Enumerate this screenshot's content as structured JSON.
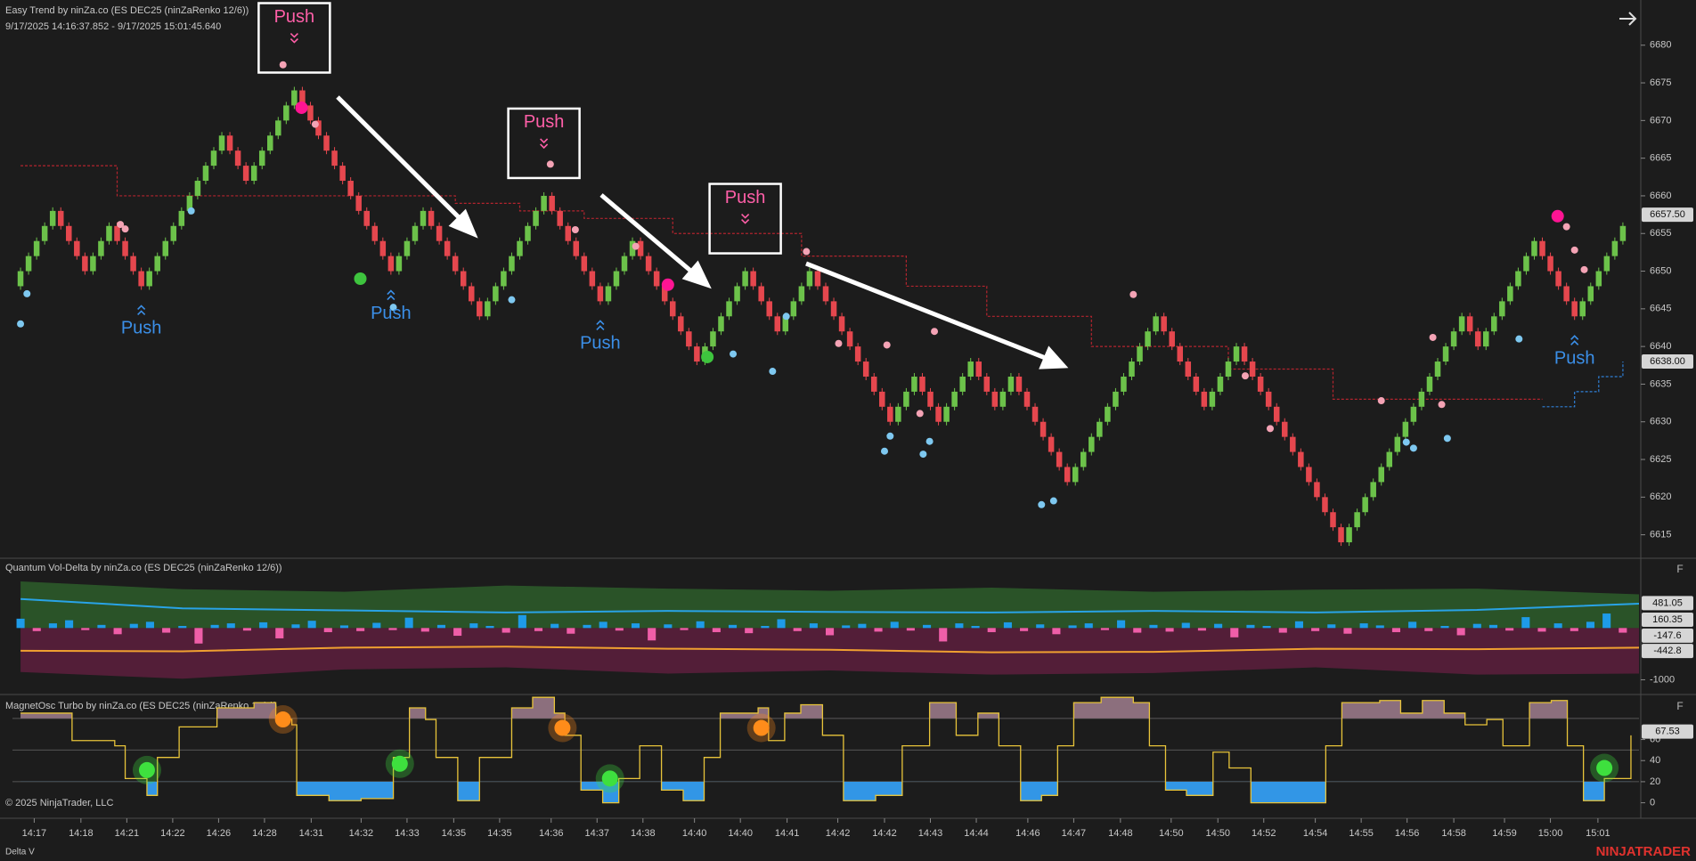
{
  "chart_data": [
    {
      "type": "renko",
      "title": "Easy Trend by ninZa.co (ES DEC25 (ninZaRenko 12/6))",
      "subtitle": "9/17/2025 14:16:37.852 - 9/17/2025 15:01:45.640",
      "open": 6648,
      "values": [
        6650,
        6652,
        6654,
        6656,
        6658,
        6656,
        6654,
        6652,
        6650,
        6652,
        6654,
        6656,
        6654,
        6652,
        6650,
        6648,
        6650,
        6652,
        6654,
        6656,
        6658,
        6660,
        6662,
        6664,
        6666,
        6668,
        6666,
        6664,
        6662,
        6664,
        6666,
        6668,
        6670,
        6672,
        6674,
        6672,
        6670,
        6668,
        6666,
        6664,
        6662,
        6660,
        6658,
        6656,
        6654,
        6652,
        6650,
        6652,
        6654,
        6656,
        6658,
        6656,
        6654,
        6652,
        6650,
        6648,
        6646,
        6644,
        6646,
        6648,
        6650,
        6652,
        6654,
        6656,
        6658,
        6660,
        6658,
        6656,
        6654,
        6652,
        6650,
        6648,
        6646,
        6648,
        6650,
        6652,
        6654,
        6652,
        6650,
        6648,
        6646,
        6644,
        6642,
        6640,
        6638,
        6640,
        6642,
        6644,
        6646,
        6648,
        6650,
        6648,
        6646,
        6644,
        6642,
        6644,
        6646,
        6648,
        6650,
        6648,
        6646,
        6644,
        6642,
        6640,
        6638,
        6636,
        6634,
        6632,
        6630,
        6632,
        6634,
        6636,
        6634,
        6632,
        6630,
        6632,
        6634,
        6636,
        6638,
        6636,
        6634,
        6632,
        6634,
        6636,
        6634,
        6632,
        6630,
        6628,
        6626,
        6624,
        6622,
        6624,
        6626,
        6628,
        6630,
        6632,
        6634,
        6636,
        6638,
        6640,
        6642,
        6644,
        6642,
        6640,
        6638,
        6636,
        6634,
        6632,
        6634,
        6636,
        6638,
        6640,
        6638,
        6636,
        6634,
        6632,
        6630,
        6628,
        6626,
        6624,
        6622,
        6620,
        6618,
        6616,
        6614,
        6616,
        6618,
        6620,
        6622,
        6624,
        6626,
        6628,
        6630,
        6632,
        6634,
        6636,
        6638,
        6640,
        6642,
        6644,
        6642,
        6640,
        6642,
        6644,
        6646,
        6648,
        6650,
        6652,
        6654,
        6652,
        6650,
        6648,
        6646,
        6644,
        6646,
        6648,
        6650,
        6652,
        6654,
        6656
      ],
      "up_color": "#6cc24a",
      "down_color": "#e5474e",
      "xlim": [
        -1,
        201
      ],
      "xticks": [
        {
          "value": 1.7,
          "label": "14:17"
        },
        {
          "value": 7.5,
          "label": "14:18"
        },
        {
          "value": 13.2,
          "label": "14:21"
        },
        {
          "value": 18.9,
          "label": "14:22"
        },
        {
          "value": 24.6,
          "label": "14:26"
        },
        {
          "value": 30.3,
          "label": "14:28"
        },
        {
          "value": 36.1,
          "label": "14:31"
        },
        {
          "value": 42.3,
          "label": "14:32"
        },
        {
          "value": 48,
          "label": "14:33"
        },
        {
          "value": 53.8,
          "label": "14:35"
        },
        {
          "value": 59.5,
          "label": "14:35"
        },
        {
          "value": 65.9,
          "label": "14:36"
        },
        {
          "value": 71.6,
          "label": "14:37"
        },
        {
          "value": 77.3,
          "label": "14:38"
        },
        {
          "value": 83.7,
          "label": "14:40"
        },
        {
          "value": 89.4,
          "label": "14:40"
        },
        {
          "value": 95.2,
          "label": "14:41"
        },
        {
          "value": 101.5,
          "label": "14:42"
        },
        {
          "value": 107.3,
          "label": "14:42"
        },
        {
          "value": 113,
          "label": "14:43"
        },
        {
          "value": 118.7,
          "label": "14:44"
        },
        {
          "value": 125.1,
          "label": "14:46"
        },
        {
          "value": 130.8,
          "label": "14:47"
        },
        {
          "value": 136.6,
          "label": "14:48"
        },
        {
          "value": 142.9,
          "label": "14:50"
        },
        {
          "value": 148.7,
          "label": "14:50"
        },
        {
          "value": 154.4,
          "label": "14:52"
        },
        {
          "value": 160.8,
          "label": "14:54"
        },
        {
          "value": 166.5,
          "label": "14:55"
        },
        {
          "value": 172.2,
          "label": "14:56"
        },
        {
          "value": 178,
          "label": "14:58"
        },
        {
          "value": 184.3,
          "label": "14:59"
        },
        {
          "value": 190,
          "label": "15:00"
        },
        {
          "value": 195.9,
          "label": "15:01"
        }
      ],
      "ylim": [
        6612,
        6686
      ],
      "yticks": [
        6615,
        6620,
        6625,
        6630,
        6635,
        6640,
        6645,
        6650,
        6655,
        6660,
        6665,
        6670,
        6675,
        6680
      ],
      "price_flags": [
        {
          "value": 6657.5,
          "label": "6657.50"
        },
        {
          "value": 6638,
          "label": "6638.00"
        }
      ],
      "stop_lines": [
        {
          "color": "#b3242e",
          "x": [
            0,
            12,
            54,
            62,
            70,
            81,
            97,
            110,
            120,
            133,
            150,
            163,
            189
          ],
          "values": [
            6664,
            6660,
            6659,
            6658,
            6657,
            6655,
            6652,
            6648,
            6644,
            6640,
            6637,
            6633,
            6633
          ]
        },
        {
          "color": "#2f7fd6",
          "x": [
            189,
            193,
            196,
            199
          ],
          "values": [
            6632,
            6634,
            6636,
            6638
          ]
        }
      ],
      "signals": [
        {
          "x": 0.8,
          "value": 6647,
          "color": "#7ec8f0"
        },
        {
          "x": 0,
          "value": 6643,
          "color": "#7ec8f0"
        },
        {
          "x": 12.4,
          "value": 6656.2,
          "color": "#f4a3b5"
        },
        {
          "x": 13,
          "value": 6655.6,
          "color": "#f4a3b5"
        },
        {
          "x": 21.2,
          "value": 6658,
          "color": "#7ec8f0"
        },
        {
          "x": 32.6,
          "value": 6677.4,
          "color": "#f4a3b5"
        },
        {
          "x": 34.9,
          "value": 6671.7,
          "color": "#ff1493",
          "large": true
        },
        {
          "x": 36.6,
          "value": 6669.5,
          "color": "#f4a3b5"
        },
        {
          "x": 42.2,
          "value": 6649,
          "color": "#3ec43e",
          "large": true
        },
        {
          "x": 46.3,
          "value": 6645.2,
          "color": "#7ec8f0"
        },
        {
          "x": 61,
          "value": 6646.2,
          "color": "#7ec8f0"
        },
        {
          "x": 65.8,
          "value": 6664.2,
          "color": "#f4a3b5"
        },
        {
          "x": 68.9,
          "value": 6655.5,
          "color": "#f4a3b5"
        },
        {
          "x": 76.4,
          "value": 6653.3,
          "color": "#f4a3b5"
        },
        {
          "x": 80.4,
          "value": 6648.2,
          "color": "#ff1493",
          "large": true
        },
        {
          "x": 85.3,
          "value": 6638.6,
          "color": "#3ec43e",
          "large": true
        },
        {
          "x": 88.5,
          "value": 6639,
          "color": "#7ec8f0"
        },
        {
          "x": 93.4,
          "value": 6636.7,
          "color": "#7ec8f0"
        },
        {
          "x": 95.1,
          "value": 6644,
          "color": "#7ec8f0"
        },
        {
          "x": 97.6,
          "value": 6652.6,
          "color": "#f4a3b5"
        },
        {
          "x": 101.6,
          "value": 6640.4,
          "color": "#f4a3b5"
        },
        {
          "x": 107.6,
          "value": 6640.2,
          "color": "#f4a3b5"
        },
        {
          "x": 111.7,
          "value": 6631.1,
          "color": "#f4a3b5"
        },
        {
          "x": 113.5,
          "value": 6642,
          "color": "#f4a3b5"
        },
        {
          "x": 108,
          "value": 6628.1,
          "color": "#7ec8f0"
        },
        {
          "x": 107.3,
          "value": 6626.1,
          "color": "#7ec8f0"
        },
        {
          "x": 112.9,
          "value": 6627.4,
          "color": "#7ec8f0"
        },
        {
          "x": 112.1,
          "value": 6625.7,
          "color": "#7ec8f0"
        },
        {
          "x": 126.8,
          "value": 6619,
          "color": "#7ec8f0"
        },
        {
          "x": 128.3,
          "value": 6619.5,
          "color": "#7ec8f0"
        },
        {
          "x": 138.2,
          "value": 6646.9,
          "color": "#f4a3b5"
        },
        {
          "x": 152.1,
          "value": 6636.1,
          "color": "#f4a3b5"
        },
        {
          "x": 155.2,
          "value": 6629.1,
          "color": "#f4a3b5"
        },
        {
          "x": 169,
          "value": 6632.8,
          "color": "#f4a3b5"
        },
        {
          "x": 175.4,
          "value": 6641.2,
          "color": "#f4a3b5"
        },
        {
          "x": 176.5,
          "value": 6632.3,
          "color": "#f4a3b5"
        },
        {
          "x": 172.1,
          "value": 6627.3,
          "color": "#7ec8f0"
        },
        {
          "x": 173,
          "value": 6626.5,
          "color": "#7ec8f0"
        },
        {
          "x": 177.2,
          "value": 6627.8,
          "color": "#7ec8f0"
        },
        {
          "x": 186.1,
          "value": 6641,
          "color": "#7ec8f0"
        },
        {
          "x": 190.9,
          "value": 6657.3,
          "color": "#ff1493",
          "large": true
        },
        {
          "x": 192,
          "value": 6655.9,
          "color": "#f4a3b5"
        },
        {
          "x": 193,
          "value": 6652.8,
          "color": "#f4a3b5"
        },
        {
          "x": 194.2,
          "value": 6650.2,
          "color": "#f4a3b5"
        }
      ],
      "annotations": [
        {
          "text": "Push",
          "bar": 34,
          "direction": "down",
          "boxed": true,
          "color": "#ff5fa8"
        },
        {
          "text": "Push",
          "bar": 65,
          "direction": "down",
          "boxed": true,
          "color": "#ff5fa8"
        },
        {
          "text": "Push",
          "bar": 90,
          "direction": "down",
          "boxed": true,
          "color": "#ff5fa8"
        },
        {
          "text": "Push",
          "bar": 15,
          "direction": "up",
          "boxed": false,
          "color": "#3b8fe8"
        },
        {
          "text": "Push",
          "bar": 46,
          "direction": "up",
          "boxed": false,
          "color": "#3b8fe8"
        },
        {
          "text": "Push",
          "bar": 72,
          "direction": "up",
          "boxed": false,
          "color": "#3b8fe8"
        },
        {
          "text": "Push",
          "bar": 193,
          "direction": "up",
          "boxed": false,
          "color": "#3b8fe8"
        }
      ]
    },
    {
      "type": "vol-delta",
      "title": "Quantum Vol-Delta by ninZa.co (ES DEC25 (ninZaRenko 12/6))",
      "xlim": [
        -0.5,
        100
      ],
      "ylim": [
        -1250,
        1330
      ],
      "yticks": [
        -1000
      ],
      "price_flags": [
        481.05,
        160.35,
        -147.6,
        -442.8
      ],
      "values": [
        180,
        -60,
        90,
        150,
        -40,
        60,
        -120,
        80,
        120,
        -90,
        40,
        -300,
        60,
        90,
        -50,
        110,
        -200,
        70,
        140,
        -80,
        50,
        -60,
        100,
        -40,
        200,
        -70,
        60,
        -150,
        90,
        40,
        -90,
        250,
        -60,
        80,
        -110,
        60,
        120,
        -50,
        90,
        -240,
        70,
        -40,
        130,
        -80,
        60,
        -100,
        40,
        170,
        -60,
        90,
        -140,
        50,
        80,
        -70,
        120,
        -50,
        60,
        -260,
        90,
        40,
        -80,
        110,
        -60,
        70,
        -120,
        50,
        90,
        -40,
        150,
        -90,
        60,
        -70,
        100,
        -50,
        80,
        -180,
        60,
        40,
        -90,
        130,
        -60,
        70,
        -110,
        90,
        50,
        -80,
        120,
        -60,
        40,
        -140,
        80,
        60,
        -50,
        210,
        -70,
        90,
        -60,
        120,
        280,
        -90
      ],
      "up_color": "#1e9be8",
      "down_color": "#ef5ea8",
      "bands": {
        "x": [
          0,
          10,
          20,
          30,
          40,
          50,
          60,
          70,
          80,
          90,
          100
        ],
        "upper": [
          900,
          750,
          700,
          820,
          760,
          720,
          780,
          700,
          740,
          760,
          650
        ],
        "lower": [
          -850,
          -980,
          -800,
          -760,
          -880,
          -820,
          -900,
          -870,
          -760,
          -900,
          -880
        ],
        "upper_color": "#2c5a2a",
        "lower_color": "#5a1f3c"
      },
      "lines": [
        {
          "color": "#29a3e6",
          "x": [
            0,
            10,
            20,
            30,
            40,
            50,
            60,
            70,
            80,
            90,
            100
          ],
          "values": [
            560,
            380,
            340,
            300,
            330,
            310,
            300,
            330,
            300,
            350,
            470
          ]
        },
        {
          "color": "#f0a030",
          "x": [
            0,
            10,
            20,
            30,
            40,
            50,
            60,
            70,
            80,
            90,
            100
          ],
          "values": [
            -440,
            -450,
            -380,
            -360,
            -400,
            -420,
            -470,
            -460,
            -400,
            -410,
            -380
          ]
        }
      ]
    },
    {
      "type": "oscillator",
      "title": "MagnetOsc Turbo by ninZa.co (ES DEC25 (ninZaRenko 12/6))",
      "xlim": [
        -1,
        201
      ],
      "ylim": [
        -13,
        101
      ],
      "yticks": [
        0,
        20,
        40,
        60
      ],
      "levels": [
        20,
        50,
        80
      ],
      "price_flags": [
        67.53
      ],
      "x": [
        0,
        6.4,
        11.7,
        13,
        15.7,
        17,
        19.7,
        24.4,
        29,
        31.7,
        33.7,
        34.3,
        38.3,
        42.3,
        46.3,
        48.3,
        50.3,
        51.6,
        54.3,
        57,
        61,
        63.6,
        66.3,
        67.6,
        69.6,
        72.3,
        74.3,
        76.9,
        79.6,
        82.3,
        84.9,
        86.9,
        91.6,
        92.9,
        94.9,
        96.9,
        99.6,
        102.2,
        106.2,
        109.5,
        112.9,
        116.2,
        118.9,
        121.5,
        124.2,
        126.8,
        128.8,
        130.8,
        134.2,
        138.2,
        140.2,
        142.2,
        144.8,
        148.1,
        150.1,
        152.8,
        159.5,
        162.1,
        164.1,
        168.8,
        171.4,
        174.1,
        176.8,
        179.4,
        182.1,
        184.1,
        187.4,
        190.1,
        192.1,
        194.1,
        196.7,
        200
      ],
      "values": [
        85,
        59,
        54,
        23,
        7,
        43,
        72,
        90,
        95,
        79,
        74,
        7,
        2,
        4,
        43,
        90,
        79,
        43,
        2,
        43,
        90,
        100,
        85,
        64,
        12,
        0,
        23,
        54,
        12,
        2,
        43,
        85,
        90,
        59,
        85,
        93,
        64,
        2,
        7,
        54,
        95,
        64,
        85,
        54,
        2,
        7,
        54,
        95,
        100,
        95,
        54,
        12,
        7,
        48,
        33,
        0,
        0,
        54,
        95,
        97,
        85,
        97,
        85,
        74,
        79,
        54,
        95,
        97,
        54,
        2,
        23,
        64
      ],
      "color": "#e8c43a",
      "high_fill": "#8c6f7d",
      "low_fill": "#3296e6",
      "signals": [
        {
          "x": 15.7,
          "value": 31,
          "color": "#3ee03e"
        },
        {
          "x": 47.1,
          "value": 37,
          "color": "#3ee03e"
        },
        {
          "x": 73.2,
          "value": 23,
          "color": "#3ee03e"
        },
        {
          "x": 196.7,
          "value": 33,
          "color": "#3ee03e"
        },
        {
          "x": 32.6,
          "value": 79,
          "color": "#ff8c1a"
        },
        {
          "x": 67.3,
          "value": 71,
          "color": "#ff8c1a"
        },
        {
          "x": 92,
          "value": 71,
          "color": "#ff8c1a"
        }
      ]
    }
  ],
  "footer": {
    "copyright": "© 2025 NinjaTrader, LLC",
    "label": "Delta V",
    "brand": "NINJATRADER"
  },
  "panel_button": "F"
}
